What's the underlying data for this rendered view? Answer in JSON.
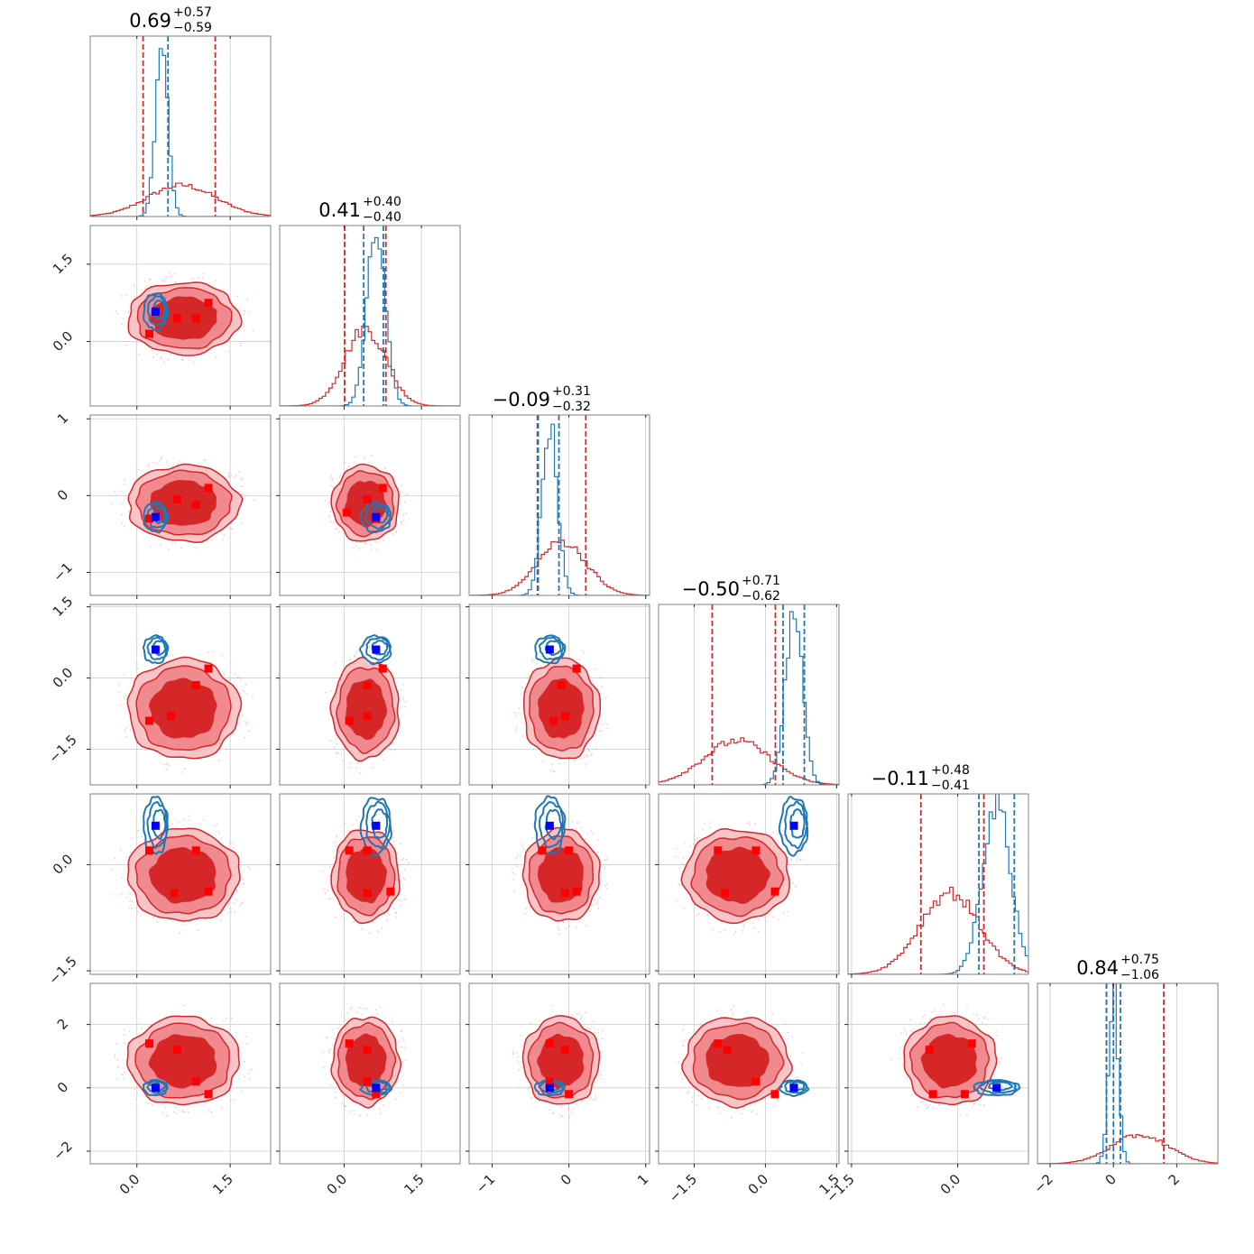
{
  "chart_data": {
    "type": "corner",
    "n_params": 6,
    "colors": {
      "series_a": "#d62728",
      "series_a_fill": "#f08a8f",
      "series_b": "#1f77b4",
      "marker_b": "#0000ff",
      "marker_a": "#ff0000",
      "grid": "#cccccc"
    },
    "series": [
      {
        "key": "a",
        "color": "#d62728"
      },
      {
        "key": "b",
        "color": "#1f77b4"
      }
    ],
    "parameters": [
      {
        "range": [
          -0.75,
          2.15
        ],
        "ticks": [
          0.0,
          1.5
        ],
        "tick_labels": [
          "0.0",
          "1.5"
        ],
        "median": 0.69,
        "plus": "+0.57",
        "minus": "−0.59",
        "title_value": "0.69",
        "a": {
          "mean": 0.72,
          "sd": 0.55,
          "q": [
            0.1,
            1.26
          ]
        },
        "b": {
          "mean": 0.4,
          "sd": 0.1,
          "q": [
            0.5
          ]
        }
      },
      {
        "range": [
          -1.25,
          2.25
        ],
        "ticks": [
          0.0,
          1.5
        ],
        "tick_labels": [
          "0.0",
          "1.5"
        ],
        "median": 0.41,
        "plus": "+0.40",
        "minus": "−0.40",
        "title_value": "0.41",
        "a": {
          "mean": 0.41,
          "sd": 0.4,
          "q": [
            0.01,
            0.81
          ]
        },
        "b": {
          "mean": 0.62,
          "sd": 0.18,
          "q": [
            0.38,
            0.76
          ]
        }
      },
      {
        "range": [
          -1.3,
          1.05
        ],
        "ticks": [
          -1,
          0,
          1
        ],
        "tick_labels": [
          "−1",
          "0",
          "1"
        ],
        "median": -0.09,
        "plus": "+0.31",
        "minus": "−0.32",
        "title_value": "−0.09",
        "a": {
          "mean": -0.09,
          "sd": 0.32,
          "q": [
            -0.41,
            0.22
          ]
        },
        "b": {
          "mean": -0.25,
          "sd": 0.1,
          "q": [
            -0.4,
            -0.13
          ]
        }
      },
      {
        "range": [
          -2.25,
          1.55
        ],
        "ticks": [
          -1.5,
          0.0,
          1.5
        ],
        "tick_labels": [
          "−1.5",
          "0.0",
          "1.5"
        ],
        "median": -0.5,
        "plus": "+0.71",
        "minus": "−0.62",
        "title_value": "−0.50",
        "a": {
          "mean": -0.6,
          "sd": 0.7,
          "q": [
            -1.12,
            0.21
          ]
        },
        "b": {
          "mean": 0.6,
          "sd": 0.18,
          "q": [
            0.37,
            0.82
          ]
        }
      },
      {
        "range": [
          -1.55,
          1.0
        ],
        "ticks": [
          -1.5,
          0.0
        ],
        "tick_labels": [
          "−1.5",
          "0.0"
        ],
        "median": -0.11,
        "plus": "+0.48",
        "minus": "−0.41",
        "title_value": "−0.11",
        "a": {
          "mean": -0.11,
          "sd": 0.42,
          "q": [
            -0.52,
            0.37
          ]
        },
        "b": {
          "mean": 0.55,
          "sd": 0.2,
          "q": [
            0.3,
            0.8
          ]
        }
      },
      {
        "range": [
          -2.4,
          3.3
        ],
        "ticks": [
          -2,
          0,
          2
        ],
        "tick_labels": [
          "−2",
          "0",
          "2"
        ],
        "median": 0.84,
        "plus": "+0.75",
        "minus": "−1.06",
        "title_value": "0.84",
        "a": {
          "mean": 0.84,
          "sd": 0.9,
          "q": [
            -0.22,
            1.59
          ]
        },
        "b": {
          "mean": 0.0,
          "sd": 0.15,
          "q": [
            -0.22,
            0.0,
            0.22
          ]
        }
      }
    ],
    "panels_2d": [
      {
        "row": 1,
        "col": 0,
        "a_center": [
          0.75,
          0.45
        ],
        "a_spread": [
          0.58,
          0.45
        ],
        "b_center": [
          0.3,
          0.58
        ],
        "b_spread": [
          0.12,
          0.22
        ],
        "a_points": [
          [
            0.65,
            0.45
          ],
          [
            0.95,
            0.45
          ],
          [
            1.15,
            0.75
          ],
          [
            0.2,
            0.15
          ]
        ],
        "b_point": [
          0.3,
          0.58
        ]
      },
      {
        "row": 2,
        "col": 0,
        "a_center": [
          0.75,
          -0.1
        ],
        "a_spread": [
          0.58,
          0.32
        ],
        "b_center": [
          0.3,
          -0.28
        ],
        "b_spread": [
          0.12,
          0.12
        ],
        "a_points": [
          [
            0.65,
            -0.05
          ],
          [
            0.95,
            -0.12
          ],
          [
            1.15,
            0.1
          ],
          [
            0.2,
            -0.3
          ]
        ],
        "b_point": [
          0.3,
          -0.28
        ]
      },
      {
        "row": 2,
        "col": 1,
        "a_center": [
          0.42,
          -0.1
        ],
        "a_spread": [
          0.42,
          0.32
        ],
        "b_center": [
          0.62,
          -0.28
        ],
        "b_spread": [
          0.18,
          0.12
        ],
        "a_points": [
          [
            0.45,
            -0.05
          ],
          [
            0.75,
            0.1
          ],
          [
            0.05,
            -0.22
          ],
          [
            0.62,
            -0.3
          ]
        ],
        "b_point": [
          0.62,
          -0.28
        ]
      },
      {
        "row": 3,
        "col": 0,
        "a_center": [
          0.75,
          -0.65
        ],
        "a_spread": [
          0.58,
          0.68
        ],
        "b_center": [
          0.3,
          0.6
        ],
        "b_spread": [
          0.12,
          0.18
        ],
        "a_points": [
          [
            0.95,
            -0.15
          ],
          [
            1.15,
            0.2
          ],
          [
            0.2,
            -0.9
          ],
          [
            0.55,
            -0.8
          ]
        ],
        "b_point": [
          0.3,
          0.6
        ]
      },
      {
        "row": 3,
        "col": 1,
        "a_center": [
          0.42,
          -0.65
        ],
        "a_spread": [
          0.42,
          0.68
        ],
        "b_center": [
          0.62,
          0.6
        ],
        "b_spread": [
          0.18,
          0.18
        ],
        "a_points": [
          [
            0.45,
            -0.15
          ],
          [
            0.75,
            0.2
          ],
          [
            0.1,
            -0.9
          ],
          [
            0.45,
            -0.8
          ]
        ],
        "b_point": [
          0.62,
          0.6
        ]
      },
      {
        "row": 3,
        "col": 2,
        "a_center": [
          -0.1,
          -0.65
        ],
        "a_spread": [
          0.32,
          0.68
        ],
        "b_center": [
          -0.25,
          0.6
        ],
        "b_spread": [
          0.12,
          0.18
        ],
        "a_points": [
          [
            -0.1,
            -0.15
          ],
          [
            0.1,
            0.2
          ],
          [
            -0.2,
            -0.9
          ],
          [
            -0.05,
            -0.8
          ]
        ],
        "b_point": [
          -0.25,
          0.6
        ]
      },
      {
        "row": 4,
        "col": 0,
        "a_center": [
          0.75,
          -0.15
        ],
        "a_spread": [
          0.58,
          0.42
        ],
        "b_center": [
          0.3,
          0.55
        ],
        "b_spread": [
          0.12,
          0.25
        ],
        "a_points": [
          [
            0.2,
            0.2
          ],
          [
            0.95,
            0.2
          ],
          [
            0.6,
            -0.4
          ],
          [
            1.15,
            -0.38
          ]
        ],
        "b_point": [
          0.3,
          0.55
        ]
      },
      {
        "row": 4,
        "col": 1,
        "a_center": [
          0.42,
          -0.15
        ],
        "a_spread": [
          0.42,
          0.42
        ],
        "b_center": [
          0.62,
          0.55
        ],
        "b_spread": [
          0.18,
          0.25
        ],
        "a_points": [
          [
            0.1,
            0.2
          ],
          [
            0.45,
            0.2
          ],
          [
            0.45,
            -0.4
          ],
          [
            0.9,
            -0.38
          ]
        ],
        "b_point": [
          0.62,
          0.55
        ]
      },
      {
        "row": 4,
        "col": 2,
        "a_center": [
          -0.1,
          -0.15
        ],
        "a_spread": [
          0.32,
          0.42
        ],
        "b_center": [
          -0.25,
          0.55
        ],
        "b_spread": [
          0.12,
          0.25
        ],
        "a_points": [
          [
            -0.35,
            0.2
          ],
          [
            0.0,
            0.2
          ],
          [
            -0.05,
            -0.4
          ],
          [
            0.1,
            -0.38
          ]
        ],
        "b_point": [
          -0.25,
          0.55
        ]
      },
      {
        "row": 4,
        "col": 3,
        "a_center": [
          -0.6,
          -0.15
        ],
        "a_spread": [
          0.72,
          0.42
        ],
        "b_center": [
          0.6,
          0.55
        ],
        "b_spread": [
          0.18,
          0.25
        ],
        "a_points": [
          [
            -1.0,
            0.2
          ],
          [
            -0.2,
            0.2
          ],
          [
            -0.85,
            -0.4
          ],
          [
            0.2,
            -0.38
          ]
        ],
        "b_point": [
          0.6,
          0.55
        ]
      },
      {
        "row": 5,
        "col": 0,
        "a_center": [
          0.75,
          0.85
        ],
        "a_spread": [
          0.58,
          0.9
        ],
        "b_center": [
          0.3,
          0.0
        ],
        "b_spread": [
          0.12,
          0.15
        ],
        "a_points": [
          [
            0.2,
            1.4
          ],
          [
            0.65,
            1.2
          ],
          [
            0.95,
            0.2
          ],
          [
            1.15,
            -0.2
          ]
        ],
        "b_point": [
          0.3,
          0.0
        ]
      },
      {
        "row": 5,
        "col": 1,
        "a_center": [
          0.42,
          0.85
        ],
        "a_spread": [
          0.42,
          0.9
        ],
        "b_center": [
          0.62,
          0.0
        ],
        "b_spread": [
          0.18,
          0.15
        ],
        "a_points": [
          [
            0.1,
            1.4
          ],
          [
            0.45,
            1.2
          ],
          [
            0.45,
            0.2
          ],
          [
            0.62,
            -0.2
          ]
        ],
        "b_point": [
          0.62,
          0.0
        ]
      },
      {
        "row": 5,
        "col": 2,
        "a_center": [
          -0.1,
          0.85
        ],
        "a_spread": [
          0.32,
          0.9
        ],
        "b_center": [
          -0.25,
          0.0
        ],
        "b_spread": [
          0.12,
          0.15
        ],
        "a_points": [
          [
            -0.25,
            1.4
          ],
          [
            -0.05,
            1.2
          ],
          [
            -0.25,
            0.2
          ],
          [
            0.0,
            -0.2
          ]
        ],
        "b_point": [
          -0.25,
          0.0
        ]
      },
      {
        "row": 5,
        "col": 3,
        "a_center": [
          -0.6,
          0.85
        ],
        "a_spread": [
          0.72,
          0.9
        ],
        "b_center": [
          0.6,
          0.0
        ],
        "b_spread": [
          0.18,
          0.15
        ],
        "a_points": [
          [
            -1.0,
            1.4
          ],
          [
            -0.8,
            1.2
          ],
          [
            -0.2,
            0.2
          ],
          [
            0.2,
            -0.2
          ]
        ],
        "b_point": [
          0.6,
          0.0
        ]
      },
      {
        "row": 5,
        "col": 4,
        "a_center": [
          -0.11,
          0.85
        ],
        "a_spread": [
          0.42,
          0.9
        ],
        "b_center": [
          0.55,
          0.0
        ],
        "b_spread": [
          0.2,
          0.15
        ],
        "a_points": [
          [
            -0.4,
            1.2
          ],
          [
            0.2,
            1.4
          ],
          [
            -0.35,
            -0.2
          ],
          [
            0.1,
            -0.2
          ]
        ],
        "b_point": [
          0.55,
          0.0
        ]
      }
    ]
  }
}
